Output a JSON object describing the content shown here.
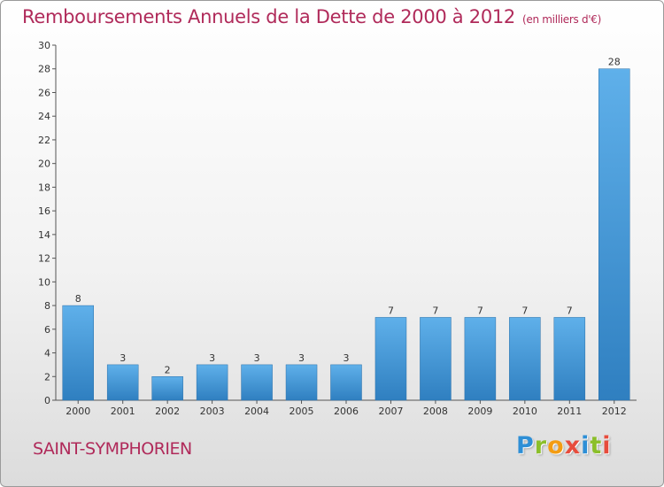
{
  "chart_data": {
    "type": "bar",
    "title": "Remboursements Annuels de la Dette de 2000 à 2012",
    "subtitle": "(en milliers d'€)",
    "categories": [
      "2000",
      "2001",
      "2002",
      "2003",
      "2004",
      "2005",
      "2006",
      "2007",
      "2008",
      "2009",
      "2010",
      "2011",
      "2012"
    ],
    "values": [
      8,
      3,
      2,
      3,
      3,
      3,
      3,
      7,
      7,
      7,
      7,
      7,
      28
    ],
    "ylim": [
      0,
      30
    ],
    "yticks": [
      0,
      2,
      4,
      6,
      8,
      10,
      12,
      14,
      16,
      18,
      20,
      22,
      24,
      26,
      28,
      30
    ],
    "grid": false,
    "bar_color": "#4a9fdc"
  },
  "footer": {
    "city": "SAINT-SYMPHORIEN",
    "logo": [
      "P",
      "r",
      "o",
      "x",
      "i",
      "t",
      "i"
    ],
    "logo_colors": [
      "#2e8fd6",
      "#8bbf2a",
      "#f39c12",
      "#e74c3c",
      "#2e8fd6",
      "#8bbf2a",
      "#e74c3c"
    ]
  }
}
